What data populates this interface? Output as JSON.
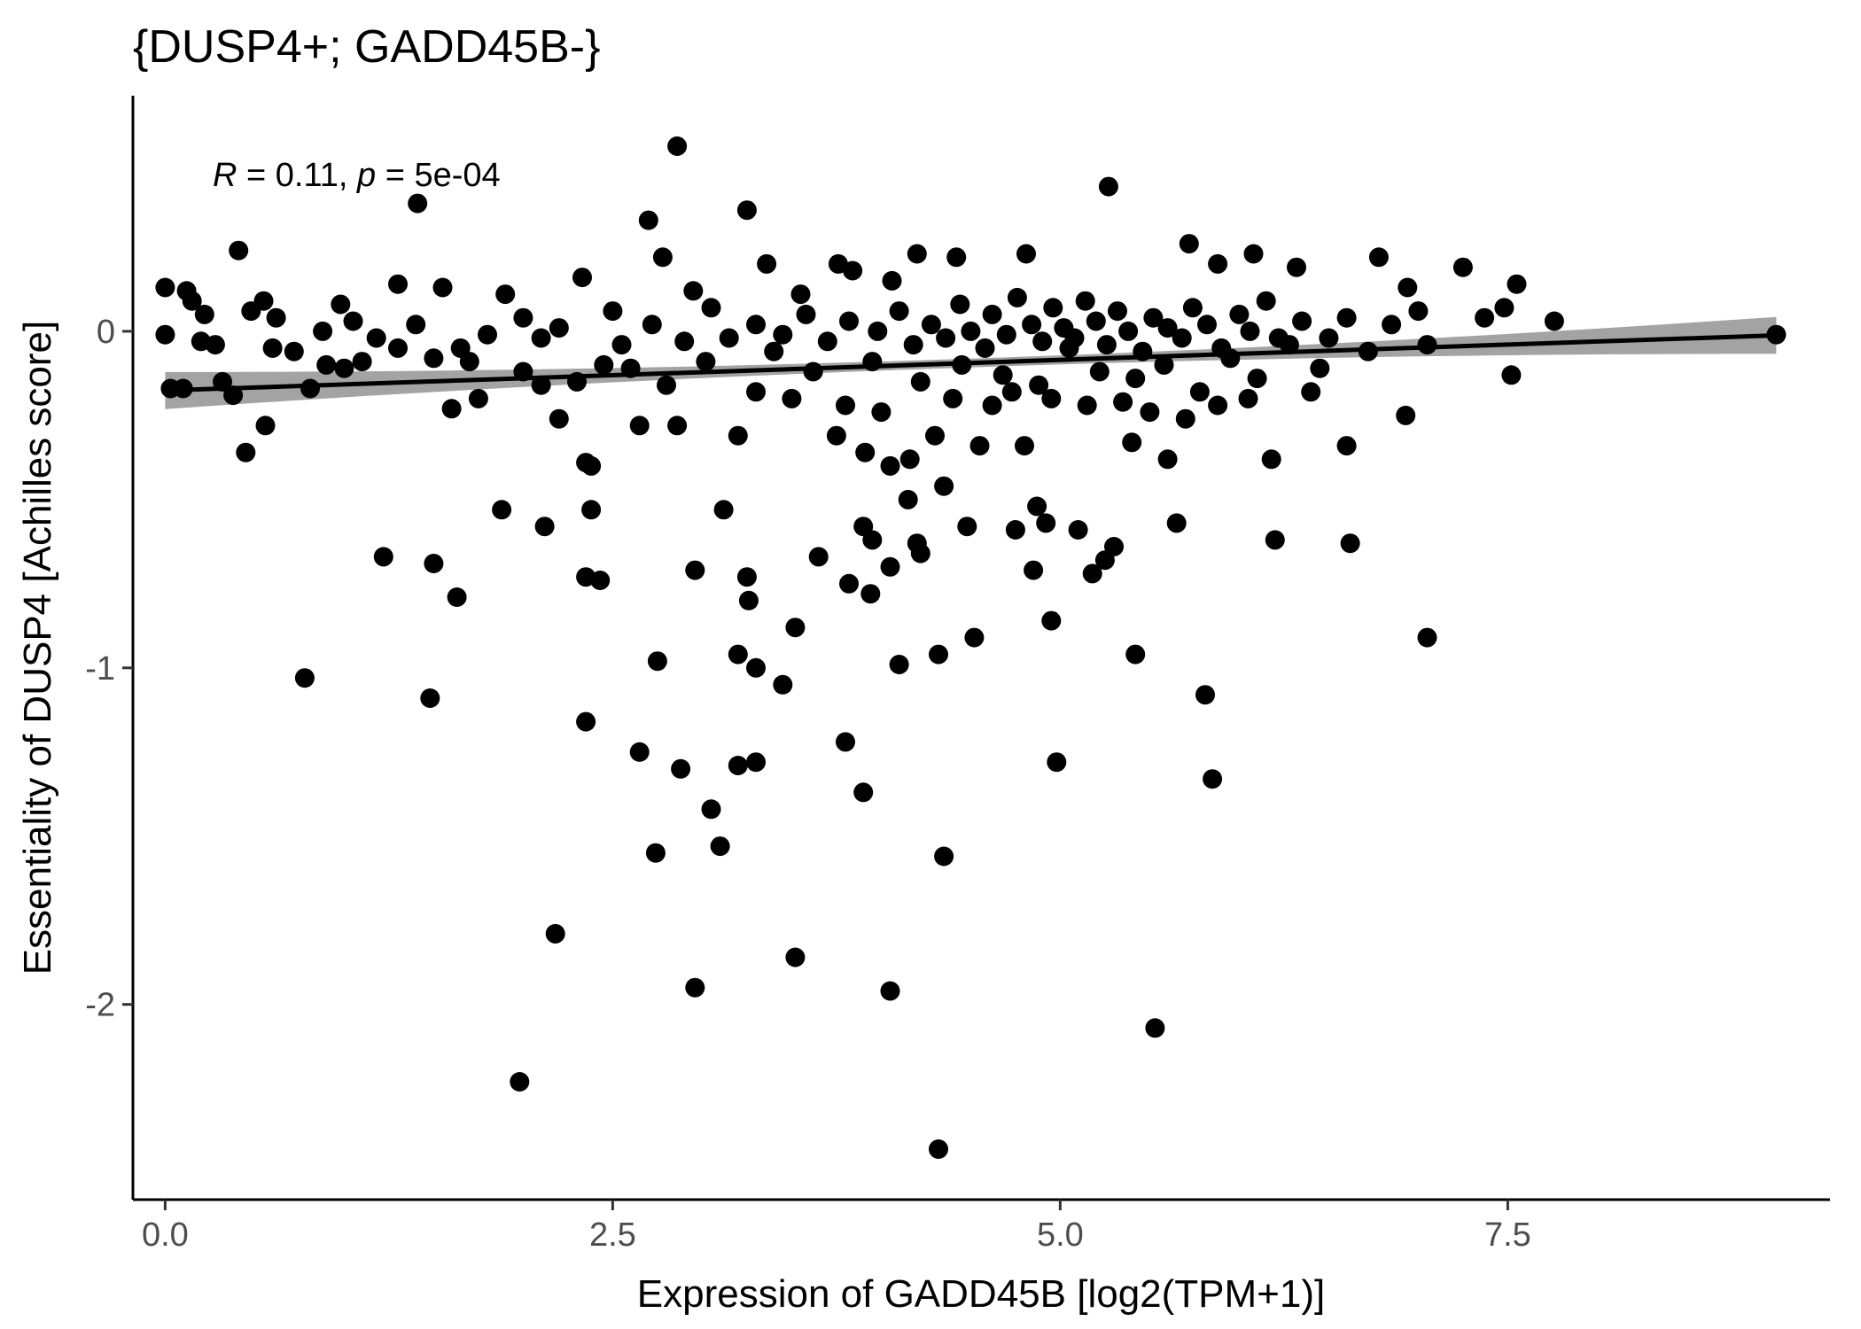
{
  "chart_data": {
    "type": "scatter",
    "title": "{DUSP4+; GADD45B-}",
    "xlabel": "Expression of GADD45B [log2(TPM+1)]",
    "ylabel": "Essentiality of DUSP4 [Achilles score]",
    "xlim": [
      -0.18,
      9.3
    ],
    "ylim": [
      -2.58,
      0.7
    ],
    "x_ticks": [
      0.0,
      2.5,
      5.0,
      7.5
    ],
    "x_tick_labels": [
      "0.0",
      "2.5",
      "5.0",
      "7.5"
    ],
    "y_ticks": [
      -2,
      -1,
      0
    ],
    "y_tick_labels": [
      "-2",
      "-1",
      "0"
    ],
    "grid": false,
    "annotation": {
      "r_label": "R",
      "r_value": " = 0.11, ",
      "p_label": "p",
      "p_value": " = 5e-04"
    },
    "regression": {
      "x_range": [
        0.0,
        9.0
      ],
      "intercept": -0.176,
      "slope": 0.0182,
      "ci_halfwidth_ends": 0.055,
      "ci_halfwidth_mid": 0.013,
      "line_color": "#000000",
      "band_color": "#999999"
    },
    "point_color": "#000000",
    "points": [
      [
        2.86,
        0.55
      ],
      [
        5.27,
        0.43
      ],
      [
        1.41,
        0.38
      ],
      [
        3.25,
        0.36
      ],
      [
        2.7,
        0.33
      ],
      [
        0.41,
        0.24
      ],
      [
        5.72,
        0.26
      ],
      [
        4.2,
        0.23
      ],
      [
        4.42,
        0.22
      ],
      [
        4.81,
        0.23
      ],
      [
        6.08,
        0.23
      ],
      [
        6.78,
        0.22
      ],
      [
        2.78,
        0.22
      ],
      [
        3.36,
        0.2
      ],
      [
        3.76,
        0.2
      ],
      [
        5.88,
        0.2
      ],
      [
        6.32,
        0.19
      ],
      [
        7.25,
        0.19
      ],
      [
        0.0,
        0.13
      ],
      [
        0.12,
        0.12
      ],
      [
        0.55,
        0.09
      ],
      [
        0.98,
        0.08
      ],
      [
        1.3,
        0.14
      ],
      [
        1.55,
        0.13
      ],
      [
        1.9,
        0.11
      ],
      [
        2.33,
        0.16
      ],
      [
        2.95,
        0.12
      ],
      [
        3.55,
        0.11
      ],
      [
        3.84,
        0.18
      ],
      [
        4.06,
        0.15
      ],
      [
        6.94,
        0.13
      ],
      [
        7.55,
        0.14
      ],
      [
        7.48,
        0.07
      ],
      [
        7.37,
        0.04
      ],
      [
        7.76,
        0.03
      ],
      [
        9.0,
        -0.01
      ],
      [
        0.03,
        -0.17
      ],
      [
        0.1,
        -0.17
      ],
      [
        0.32,
        -0.15
      ],
      [
        0.38,
        -0.19
      ],
      [
        0.45,
        -0.36
      ],
      [
        0.56,
        -0.28
      ],
      [
        0.81,
        -0.17
      ],
      [
        1.6,
        -0.23
      ],
      [
        1.75,
        -0.2
      ],
      [
        2.2,
        -0.26
      ],
      [
        2.35,
        -0.39
      ],
      [
        2.38,
        -0.4
      ],
      [
        2.65,
        -0.28
      ],
      [
        2.86,
        -0.28
      ],
      [
        3.2,
        -0.31
      ],
      [
        3.75,
        -0.31
      ],
      [
        3.91,
        -0.36
      ],
      [
        4.05,
        -0.4
      ],
      [
        4.16,
        -0.38
      ],
      [
        4.3,
        -0.31
      ],
      [
        4.55,
        -0.34
      ],
      [
        4.8,
        -0.34
      ],
      [
        5.4,
        -0.33
      ],
      [
        5.6,
        -0.38
      ],
      [
        6.18,
        -0.38
      ],
      [
        6.6,
        -0.34
      ],
      [
        6.93,
        -0.25
      ],
      [
        7.52,
        -0.13
      ],
      [
        0.0,
        -0.01
      ],
      [
        0.2,
        -0.03
      ],
      [
        0.72,
        -0.06
      ],
      [
        1.1,
        -0.09
      ],
      [
        1.5,
        -0.08
      ],
      [
        1.8,
        -0.01
      ],
      [
        2.1,
        -0.02
      ],
      [
        2.45,
        -0.1
      ],
      [
        2.6,
        -0.11
      ],
      [
        3.02,
        -0.09
      ],
      [
        3.4,
        -0.06
      ],
      [
        3.62,
        -0.12
      ],
      [
        3.95,
        -0.09
      ],
      [
        4.22,
        -0.15
      ],
      [
        4.45,
        -0.1
      ],
      [
        4.68,
        -0.13
      ],
      [
        4.88,
        -0.16
      ],
      [
        5.05,
        -0.05
      ],
      [
        5.22,
        -0.12
      ],
      [
        5.42,
        -0.14
      ],
      [
        5.58,
        -0.1
      ],
      [
        5.78,
        -0.18
      ],
      [
        5.95,
        -0.08
      ],
      [
        6.1,
        -0.14
      ],
      [
        6.28,
        -0.04
      ],
      [
        6.45,
        -0.11
      ],
      [
        6.72,
        -0.06
      ],
      [
        7.05,
        -0.04
      ],
      [
        1.88,
        -0.53
      ],
      [
        2.12,
        -0.58
      ],
      [
        1.22,
        -0.67
      ],
      [
        1.5,
        -0.69
      ],
      [
        2.35,
        -0.73
      ],
      [
        2.43,
        -0.74
      ],
      [
        2.38,
        -0.53
      ],
      [
        1.63,
        -0.79
      ],
      [
        3.12,
        -0.53
      ],
      [
        2.96,
        -0.71
      ],
      [
        3.25,
        -0.73
      ],
      [
        3.26,
        -0.8
      ],
      [
        3.52,
        -0.88
      ],
      [
        3.65,
        -0.67
      ],
      [
        3.82,
        -0.75
      ],
      [
        3.9,
        -0.58
      ],
      [
        3.95,
        -0.62
      ],
      [
        3.94,
        -0.78
      ],
      [
        4.05,
        -0.7
      ],
      [
        4.15,
        -0.5
      ],
      [
        4.2,
        -0.63
      ],
      [
        4.22,
        -0.66
      ],
      [
        4.35,
        -0.46
      ],
      [
        4.48,
        -0.58
      ],
      [
        4.75,
        -0.59
      ],
      [
        4.87,
        -0.52
      ],
      [
        4.92,
        -0.57
      ],
      [
        4.85,
        -0.71
      ],
      [
        5.1,
        -0.59
      ],
      [
        5.18,
        -0.72
      ],
      [
        5.25,
        -0.68
      ],
      [
        5.3,
        -0.64
      ],
      [
        5.65,
        -0.57
      ],
      [
        6.2,
        -0.62
      ],
      [
        6.62,
        -0.63
      ],
      [
        4.95,
        -0.86
      ],
      [
        4.52,
        -0.91
      ],
      [
        7.05,
        -0.91
      ],
      [
        0.78,
        -1.03
      ],
      [
        1.48,
        -1.09
      ],
      [
        2.75,
        -0.98
      ],
      [
        3.2,
        -0.96
      ],
      [
        3.3,
        -1.0
      ],
      [
        3.45,
        -1.05
      ],
      [
        4.1,
        -0.99
      ],
      [
        4.32,
        -0.96
      ],
      [
        5.42,
        -0.96
      ],
      [
        5.81,
        -1.08
      ],
      [
        2.35,
        -1.16
      ],
      [
        2.65,
        -1.25
      ],
      [
        2.88,
        -1.3
      ],
      [
        3.2,
        -1.29
      ],
      [
        3.3,
        -1.28
      ],
      [
        3.8,
        -1.22
      ],
      [
        3.9,
        -1.37
      ],
      [
        4.98,
        -1.28
      ],
      [
        5.85,
        -1.33
      ],
      [
        3.05,
        -1.42
      ],
      [
        3.1,
        -1.53
      ],
      [
        2.74,
        -1.55
      ],
      [
        4.35,
        -1.56
      ],
      [
        2.18,
        -1.79
      ],
      [
        3.52,
        -1.86
      ],
      [
        2.96,
        -1.95
      ],
      [
        4.05,
        -1.96
      ],
      [
        5.53,
        -2.07
      ],
      [
        1.98,
        -2.23
      ],
      [
        4.32,
        -2.43
      ],
      [
        0.15,
        0.09
      ],
      [
        0.22,
        0.05
      ],
      [
        0.28,
        -0.04
      ],
      [
        0.48,
        0.06
      ],
      [
        0.62,
        0.04
      ],
      [
        0.88,
        0.0
      ],
      [
        1.05,
        0.03
      ],
      [
        1.18,
        -0.02
      ],
      [
        1.4,
        0.02
      ],
      [
        1.65,
        -0.05
      ],
      [
        2.0,
        0.04
      ],
      [
        2.2,
        0.01
      ],
      [
        2.5,
        0.06
      ],
      [
        2.55,
        -0.04
      ],
      [
        2.72,
        0.02
      ],
      [
        2.9,
        -0.03
      ],
      [
        3.05,
        0.07
      ],
      [
        3.15,
        -0.02
      ],
      [
        3.3,
        0.02
      ],
      [
        3.45,
        -0.01
      ],
      [
        3.58,
        0.05
      ],
      [
        3.7,
        -0.03
      ],
      [
        3.82,
        0.03
      ],
      [
        3.98,
        0.0
      ],
      [
        4.1,
        0.06
      ],
      [
        4.18,
        -0.04
      ],
      [
        4.28,
        0.02
      ],
      [
        4.36,
        -0.02
      ],
      [
        4.44,
        0.08
      ],
      [
        4.5,
        0.0
      ],
      [
        4.58,
        -0.05
      ],
      [
        4.62,
        0.05
      ],
      [
        4.7,
        -0.01
      ],
      [
        4.76,
        0.1
      ],
      [
        4.84,
        0.02
      ],
      [
        4.9,
        -0.03
      ],
      [
        4.96,
        0.07
      ],
      [
        5.02,
        0.01
      ],
      [
        5.08,
        -0.02
      ],
      [
        5.14,
        0.09
      ],
      [
        5.2,
        0.03
      ],
      [
        5.26,
        -0.04
      ],
      [
        5.32,
        0.06
      ],
      [
        5.38,
        0.0
      ],
      [
        5.46,
        -0.06
      ],
      [
        5.52,
        0.04
      ],
      [
        5.6,
        0.01
      ],
      [
        5.68,
        -0.02
      ],
      [
        5.74,
        0.07
      ],
      [
        5.82,
        0.02
      ],
      [
        5.9,
        -0.05
      ],
      [
        6.0,
        0.05
      ],
      [
        6.06,
        0.0
      ],
      [
        6.15,
        0.09
      ],
      [
        6.22,
        -0.02
      ],
      [
        6.35,
        0.03
      ],
      [
        6.5,
        -0.02
      ],
      [
        6.6,
        0.04
      ],
      [
        6.85,
        0.02
      ],
      [
        7.0,
        0.06
      ],
      [
        4.4,
        -0.2
      ],
      [
        4.62,
        -0.22
      ],
      [
        4.73,
        -0.18
      ],
      [
        4.95,
        -0.2
      ],
      [
        5.15,
        -0.22
      ],
      [
        5.35,
        -0.21
      ],
      [
        5.5,
        -0.24
      ],
      [
        5.7,
        -0.26
      ],
      [
        5.88,
        -0.22
      ],
      [
        6.05,
        -0.2
      ],
      [
        6.4,
        -0.18
      ],
      [
        3.3,
        -0.18
      ],
      [
        3.5,
        -0.2
      ],
      [
        3.8,
        -0.22
      ],
      [
        4.0,
        -0.24
      ],
      [
        2.0,
        -0.12
      ],
      [
        2.3,
        -0.15
      ],
      [
        2.8,
        -0.16
      ],
      [
        1.0,
        -0.11
      ],
      [
        1.3,
        -0.05
      ],
      [
        0.6,
        -0.05
      ],
      [
        0.9,
        -0.1
      ],
      [
        1.7,
        -0.09
      ],
      [
        2.1,
        -0.16
      ]
    ]
  }
}
